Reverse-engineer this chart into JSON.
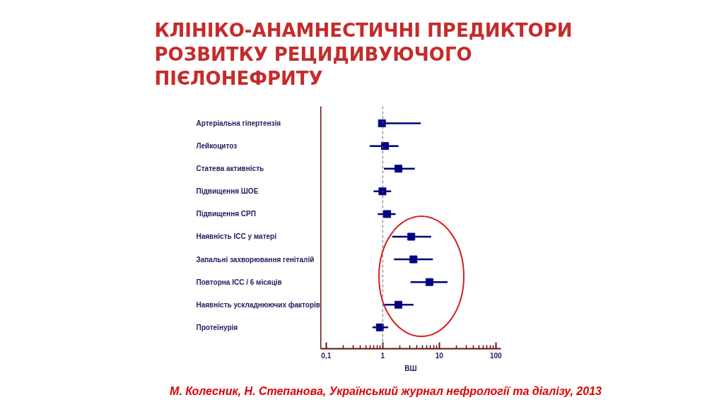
{
  "chart_data": {
    "type": "scatter",
    "orientation": "horizontal",
    "title": "КЛІНІКО-АНАМНЕСТИЧНІ ПРЕДИКТОРИ РОЗВИТКУ РЕЦИДИВУЮЧОГО ПІЄЛОНЕФРИТУ",
    "xlabel": "ВШ",
    "categories": [
      "Артеріальна гіпертензія",
      "Лейкоцитоз",
      "Статева активність",
      "Підвищення ШОЕ",
      "Підвищення СРП",
      "Наявність ІСС у матері",
      "Запальні захворювання геніталій",
      "Повторна ІСС / 6 місяців",
      "Наявність ускладнюючих факторів",
      "Протеїнурія"
    ],
    "series": [
      {
        "color": "#000080",
        "values": [
          0.97,
          1.1,
          1.9,
          0.99,
          1.2,
          3.2,
          3.5,
          6.7,
          1.9,
          0.89
        ],
        "errors": [
          [
            0.93,
            4.7
          ],
          [
            0.59,
            1.9
          ],
          [
            1.05,
            3.7
          ],
          [
            0.69,
            1.41
          ],
          [
            0.82,
            1.69
          ],
          [
            1.47,
            7.2
          ],
          [
            1.58,
            7.7
          ],
          [
            3.1,
            14
          ],
          [
            1.01,
            3.5
          ],
          [
            0.66,
            1.25
          ]
        ]
      }
    ],
    "marker": "square",
    "log": "x",
    "xlim": [
      0.08,
      123
    ],
    "xticks": [
      {
        "value": 0.1,
        "label": "0,1"
      },
      {
        "value": 0.2,
        "label": null
      },
      {
        "value": 0.3,
        "label": null
      },
      {
        "value": 0.4,
        "label": null
      },
      {
        "value": 0.5,
        "label": null
      },
      {
        "value": 0.6,
        "label": null
      },
      {
        "value": 0.7,
        "label": null
      },
      {
        "value": 0.8,
        "label": null
      },
      {
        "value": 0.9,
        "label": null
      },
      1,
      {
        "value": 2,
        "label": null
      },
      {
        "value": 3,
        "label": null
      },
      {
        "value": 4,
        "label": null
      },
      {
        "value": 5,
        "label": null
      },
      {
        "value": 6,
        "label": null
      },
      {
        "value": 7,
        "label": null
      },
      {
        "value": 8,
        "label": null
      },
      {
        "value": 9,
        "label": null
      },
      10,
      {
        "value": 20,
        "label": null
      },
      {
        "value": 30,
        "label": null
      },
      {
        "value": 40,
        "label": null
      },
      {
        "value": 50,
        "label": null
      },
      {
        "value": 60,
        "label": null
      },
      {
        "value": 70,
        "label": null
      },
      {
        "value": 80,
        "label": null
      },
      {
        "value": 90,
        "label": null
      },
      100
    ],
    "ref_lines": [
      {
        "axis": "x",
        "value": 1,
        "color": "#606080",
        "line_style": "dashed"
      }
    ],
    "annotations": [
      "М. Колесник, Н. Степанова, Український журнал нефрології та діалізу, 2013"
    ]
  }
}
